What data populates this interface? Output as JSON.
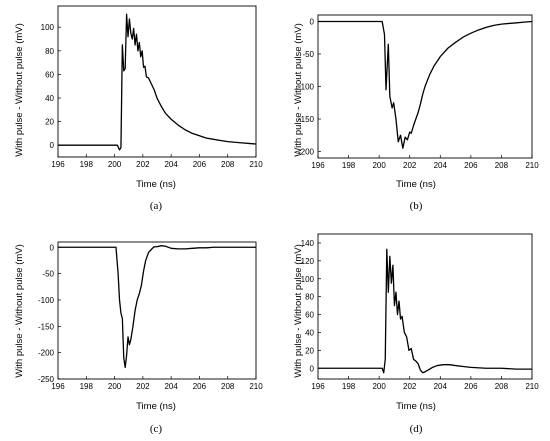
{
  "chart_data": [
    {
      "type": "line",
      "caption": "(a)",
      "xlabel": "Time (ns)",
      "ylabel": "With pulse - Without pulse (mV)",
      "xlim": [
        196,
        210
      ],
      "ylim": [
        -10,
        118
      ],
      "xticks": [
        "196",
        "198",
        "200",
        "202",
        "204",
        "206",
        "208",
        "210"
      ],
      "yticks": [
        "0",
        "20",
        "40",
        "60",
        "80",
        "100"
      ],
      "grid": false,
      "series": [
        {
          "x": [
            196,
            200.2,
            200.35,
            200.45,
            200.55,
            200.65,
            200.75,
            200.85,
            200.95,
            201.05,
            201.15,
            201.25,
            201.35,
            201.45,
            201.55,
            201.65,
            201.75,
            201.85,
            201.95,
            202.05,
            202.15,
            202.25,
            202.4,
            202.6,
            202.8,
            203.0,
            203.3,
            203.6,
            204.0,
            204.5,
            205.0,
            205.5,
            206.0,
            206.5,
            207.0,
            207.5,
            208.0,
            208.5,
            209.0,
            209.5,
            210
          ],
          "y": [
            0,
            0,
            -4,
            -2,
            85,
            63,
            65,
            111,
            92,
            107,
            95,
            90,
            99,
            85,
            94,
            80,
            87,
            75,
            80,
            66,
            67,
            58,
            57,
            52,
            47,
            40,
            33,
            27,
            22,
            17,
            13,
            10,
            8,
            6,
            5,
            4,
            3,
            2.5,
            2,
            1.5,
            1
          ]
        }
      ]
    },
    {
      "type": "line",
      "caption": "(b)",
      "xlabel": "Time (ns)",
      "ylabel": "With pulse - Without pulse (mV)",
      "xlim": [
        196,
        210
      ],
      "ylim": [
        -210,
        10
      ],
      "xticks": [
        "196",
        "198",
        "200",
        "202",
        "204",
        "206",
        "208",
        "210"
      ],
      "yticks": [
        "0",
        "-50",
        "-100",
        "-150",
        "-200"
      ],
      "grid": false,
      "series": [
        {
          "x": [
            196,
            200.2,
            200.35,
            200.45,
            200.6,
            200.7,
            200.85,
            200.95,
            201.1,
            201.25,
            201.4,
            201.55,
            201.7,
            201.85,
            202.0,
            202.1,
            202.25,
            202.4,
            202.55,
            202.7,
            202.85,
            203.0,
            203.3,
            203.6,
            204.0,
            204.5,
            205.0,
            205.5,
            206.0,
            206.5,
            207.0,
            207.5,
            208.0,
            208.5,
            209.0,
            209.5,
            210
          ],
          "y": [
            0,
            0,
            -20,
            -105,
            -35,
            -115,
            -133,
            -125,
            -150,
            -185,
            -175,
            -195,
            -178,
            -182,
            -170,
            -172,
            -160,
            -150,
            -140,
            -127,
            -112,
            -100,
            -82,
            -68,
            -54,
            -41,
            -32,
            -24,
            -18,
            -13,
            -9,
            -6,
            -4,
            -3,
            -2,
            -1,
            0
          ]
        }
      ]
    },
    {
      "type": "line",
      "caption": "(c)",
      "xlabel": "Time (ns)",
      "ylabel": "With pulse - Without pulse (mV)",
      "xlim": [
        196,
        210
      ],
      "ylim": [
        -250,
        10
      ],
      "xticks": [
        "196",
        "198",
        "200",
        "202",
        "204",
        "206",
        "208",
        "210"
      ],
      "yticks": [
        "0",
        "-50",
        "-100",
        "-150",
        "-200",
        "-250"
      ],
      "grid": false,
      "series": [
        {
          "x": [
            196,
            200.1,
            200.25,
            200.35,
            200.45,
            200.55,
            200.65,
            200.75,
            200.85,
            200.95,
            201.05,
            201.15,
            201.3,
            201.45,
            201.6,
            201.75,
            201.9,
            202.05,
            202.2,
            202.4,
            202.6,
            202.8,
            203.0,
            203.3,
            203.6,
            204.0,
            204.5,
            205.0,
            205.5,
            206.0,
            206.5,
            207.0,
            208.0,
            209.0,
            210
          ],
          "y": [
            0,
            0,
            -50,
            -100,
            -125,
            -135,
            -210,
            -228,
            -205,
            -170,
            -185,
            -175,
            -150,
            -120,
            -100,
            -88,
            -72,
            -45,
            -25,
            -10,
            -4,
            1,
            1,
            3,
            2,
            -2,
            -3,
            -3,
            -2,
            -1,
            -1,
            0,
            0,
            0,
            0
          ]
        }
      ]
    },
    {
      "type": "line",
      "caption": "(d)",
      "xlabel": "Time (ns)",
      "ylabel": "With pulse - Without pulse (mV)",
      "xlim": [
        196,
        210
      ],
      "ylim": [
        -12,
        150
      ],
      "xticks": [
        "196",
        "198",
        "200",
        "202",
        "204",
        "206",
        "208",
        "210"
      ],
      "yticks": [
        "0",
        "20",
        "40",
        "60",
        "80",
        "100",
        "120",
        "140"
      ],
      "grid": false,
      "series": [
        {
          "x": [
            196,
            200.2,
            200.3,
            200.4,
            200.5,
            200.6,
            200.7,
            200.8,
            200.9,
            201.0,
            201.1,
            201.2,
            201.3,
            201.4,
            201.5,
            201.65,
            201.8,
            201.95,
            202.1,
            202.25,
            202.4,
            202.55,
            202.7,
            202.85,
            203.0,
            203.2,
            203.5,
            203.8,
            204.2,
            204.6,
            205.0,
            205.5,
            206.0,
            207.0,
            208.0,
            209.0,
            210
          ],
          "y": [
            0,
            0,
            -5,
            10,
            133,
            85,
            125,
            95,
            115,
            70,
            85,
            60,
            75,
            55,
            58,
            40,
            35,
            20,
            22,
            10,
            8,
            5,
            -2,
            -5,
            -4,
            -2,
            1,
            3,
            4,
            4,
            3,
            2,
            1,
            0,
            0,
            -1,
            -1
          ]
        }
      ]
    }
  ]
}
